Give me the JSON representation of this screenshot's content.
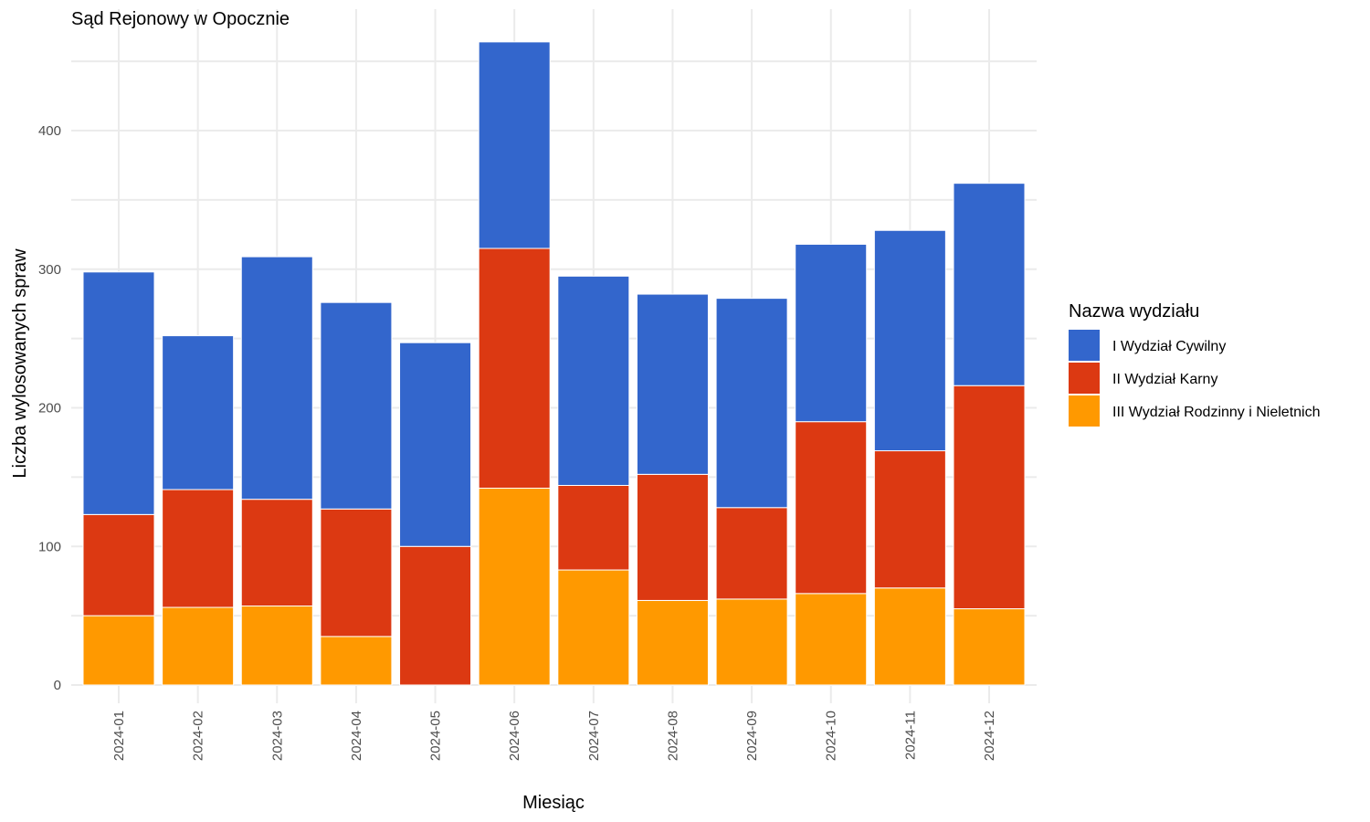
{
  "chart_data": {
    "type": "bar",
    "stacked": true,
    "title": "Sąd Rejonowy w Opocznie",
    "xlabel": "Miesiąc",
    "ylabel": "Liczba wylosowanych spraw",
    "ylim": [
      0,
      480
    ],
    "yticks": [
      0,
      100,
      200,
      300,
      400
    ],
    "grid": true,
    "legend_position": "right",
    "legend_title": "Nazwa wydziału",
    "categories": [
      "2024-01",
      "2024-02",
      "2024-03",
      "2024-04",
      "2024-05",
      "2024-06",
      "2024-07",
      "2024-08",
      "2024-09",
      "2024-10",
      "2024-11",
      "2024-12"
    ],
    "series": [
      {
        "name": "I Wydział Cywilny",
        "color": "#3366cc",
        "values": [
          175,
          111,
          175,
          149,
          147,
          149,
          151,
          130,
          151,
          128,
          159,
          146
        ]
      },
      {
        "name": "II Wydział Karny",
        "color": "#dc3912",
        "values": [
          73,
          85,
          77,
          92,
          100,
          173,
          61,
          91,
          66,
          124,
          99,
          161
        ]
      },
      {
        "name": "III Wydział Rodzinny i Nieletnich",
        "color": "#ff9900",
        "values": [
          50,
          56,
          57,
          35,
          0,
          142,
          83,
          61,
          62,
          66,
          70,
          55
        ]
      }
    ]
  }
}
